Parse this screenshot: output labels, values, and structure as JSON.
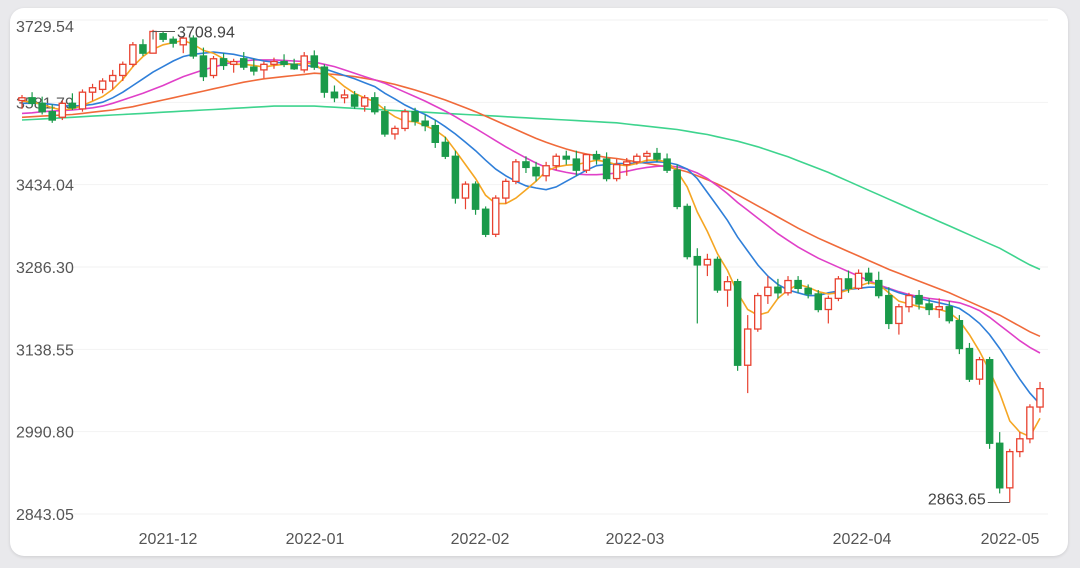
{
  "chart_data": {
    "type": "candlestick",
    "y_ticks": [
      "3729.54",
      "3581.79",
      "3434.04",
      "3286.30",
      "3138.55",
      "2990.80",
      "2843.05"
    ],
    "x_ticks": [
      "2021-12",
      "2022-01",
      "2022-02",
      "2022-03",
      "2022-04",
      "2022-05"
    ],
    "ylim": [
      2843.05,
      3729.54
    ],
    "annotations": [
      {
        "label": "3708.94",
        "value": 3708.94
      },
      {
        "label": "2863.65",
        "value": 2863.65
      }
    ],
    "colors": {
      "up": "#e8412f",
      "down": "#1a9a4a",
      "ma5": "#f5a623",
      "ma10": "#2f7fd9",
      "ma20": "#e040c8",
      "ma30": "#f06a3a",
      "ma60": "#3ed48e"
    },
    "ohlc": [
      [
        3585,
        3595,
        3570,
        3590
      ],
      [
        3590,
        3600,
        3575,
        3580
      ],
      [
        3580,
        3592,
        3560,
        3565
      ],
      [
        3565,
        3578,
        3545,
        3550
      ],
      [
        3555,
        3585,
        3550,
        3580
      ],
      [
        3580,
        3598,
        3568,
        3572
      ],
      [
        3570,
        3605,
        3565,
        3600
      ],
      [
        3600,
        3615,
        3585,
        3608
      ],
      [
        3605,
        3625,
        3598,
        3620
      ],
      [
        3620,
        3640,
        3605,
        3630
      ],
      [
        3630,
        3655,
        3620,
        3650
      ],
      [
        3650,
        3690,
        3645,
        3685
      ],
      [
        3685,
        3695,
        3665,
        3670
      ],
      [
        3670,
        3712,
        3670,
        3709
      ],
      [
        3705,
        3708,
        3690,
        3695
      ],
      [
        3695,
        3700,
        3680,
        3688
      ],
      [
        3685,
        3700,
        3670,
        3697
      ],
      [
        3697,
        3702,
        3660,
        3665
      ],
      [
        3665,
        3680,
        3620,
        3628
      ],
      [
        3630,
        3665,
        3625,
        3660
      ],
      [
        3660,
        3670,
        3640,
        3648
      ],
      [
        3650,
        3660,
        3635,
        3655
      ],
      [
        3660,
        3672,
        3640,
        3645
      ],
      [
        3645,
        3660,
        3630,
        3638
      ],
      [
        3640,
        3655,
        3625,
        3650
      ],
      [
        3650,
        3662,
        3642,
        3655
      ],
      [
        3655,
        3668,
        3645,
        3650
      ],
      [
        3650,
        3660,
        3640,
        3642
      ],
      [
        3640,
        3672,
        3635,
        3665
      ],
      [
        3665,
        3675,
        3640,
        3645
      ],
      [
        3645,
        3650,
        3590,
        3600
      ],
      [
        3600,
        3612,
        3582,
        3590
      ],
      [
        3590,
        3605,
        3580,
        3595
      ],
      [
        3595,
        3602,
        3570,
        3575
      ],
      [
        3575,
        3595,
        3565,
        3590
      ],
      [
        3590,
        3600,
        3560,
        3565
      ],
      [
        3565,
        3575,
        3520,
        3525
      ],
      [
        3525,
        3540,
        3515,
        3535
      ],
      [
        3535,
        3570,
        3530,
        3565
      ],
      [
        3565,
        3572,
        3540,
        3548
      ],
      [
        3548,
        3560,
        3530,
        3540
      ],
      [
        3540,
        3550,
        3500,
        3510
      ],
      [
        3510,
        3520,
        3480,
        3485
      ],
      [
        3485,
        3495,
        3400,
        3410
      ],
      [
        3410,
        3440,
        3390,
        3435
      ],
      [
        3435,
        3440,
        3380,
        3390
      ],
      [
        3390,
        3395,
        3340,
        3345
      ],
      [
        3345,
        3415,
        3340,
        3410
      ],
      [
        3410,
        3445,
        3400,
        3440
      ],
      [
        3440,
        3480,
        3435,
        3475
      ],
      [
        3475,
        3485,
        3455,
        3465
      ],
      [
        3465,
        3475,
        3440,
        3450
      ],
      [
        3450,
        3475,
        3440,
        3468
      ],
      [
        3468,
        3490,
        3460,
        3485
      ],
      [
        3485,
        3495,
        3470,
        3480
      ],
      [
        3480,
        3495,
        3450,
        3460
      ],
      [
        3460,
        3490,
        3455,
        3488
      ],
      [
        3488,
        3495,
        3470,
        3480
      ],
      [
        3480,
        3492,
        3440,
        3445
      ],
      [
        3445,
        3480,
        3440,
        3470
      ],
      [
        3470,
        3482,
        3450,
        3475
      ],
      [
        3475,
        3490,
        3470,
        3485
      ],
      [
        3485,
        3495,
        3475,
        3490
      ],
      [
        3490,
        3500,
        3475,
        3480
      ],
      [
        3480,
        3490,
        3455,
        3460
      ],
      [
        3460,
        3470,
        3390,
        3395
      ],
      [
        3395,
        3400,
        3300,
        3305
      ],
      [
        3305,
        3320,
        3185,
        3290
      ],
      [
        3290,
        3310,
        3270,
        3300
      ],
      [
        3300,
        3305,
        3240,
        3245
      ],
      [
        3245,
        3270,
        3215,
        3260
      ],
      [
        3260,
        3265,
        3100,
        3110
      ],
      [
        3110,
        3200,
        3060,
        3175
      ],
      [
        3175,
        3240,
        3170,
        3235
      ],
      [
        3235,
        3270,
        3220,
        3250
      ],
      [
        3250,
        3265,
        3230,
        3240
      ],
      [
        3240,
        3270,
        3235,
        3262
      ],
      [
        3262,
        3270,
        3240,
        3248
      ],
      [
        3248,
        3255,
        3230,
        3238
      ],
      [
        3238,
        3245,
        3205,
        3210
      ],
      [
        3210,
        3235,
        3185,
        3230
      ],
      [
        3230,
        3270,
        3225,
        3265
      ],
      [
        3265,
        3280,
        3240,
        3248
      ],
      [
        3248,
        3282,
        3245,
        3275
      ],
      [
        3275,
        3285,
        3255,
        3262
      ],
      [
        3262,
        3278,
        3230,
        3235
      ],
      [
        3235,
        3250,
        3175,
        3185
      ],
      [
        3185,
        3220,
        3165,
        3215
      ],
      [
        3215,
        3240,
        3205,
        3235
      ],
      [
        3235,
        3245,
        3210,
        3220
      ],
      [
        3220,
        3230,
        3200,
        3210
      ],
      [
        3210,
        3230,
        3195,
        3215
      ],
      [
        3215,
        3225,
        3185,
        3190
      ],
      [
        3190,
        3200,
        3130,
        3140
      ],
      [
        3140,
        3150,
        3080,
        3085
      ],
      [
        3085,
        3125,
        3075,
        3120
      ],
      [
        3120,
        3125,
        2960,
        2970
      ],
      [
        2970,
        2990,
        2880,
        2890
      ],
      [
        2890,
        2960,
        2864,
        2955
      ],
      [
        2955,
        2990,
        2945,
        2978
      ],
      [
        2978,
        3040,
        2970,
        3035
      ],
      [
        3035,
        3080,
        3025,
        3068
      ]
    ],
    "ma5": [
      3584,
      3582,
      3578,
      3572,
      3568,
      3570,
      3576,
      3584,
      3592,
      3605,
      3623,
      3646,
      3664,
      3677,
      3685,
      3689,
      3693,
      3686,
      3675,
      3670,
      3660,
      3650,
      3650,
      3648,
      3645,
      3648,
      3650,
      3650,
      3652,
      3651,
      3637,
      3625,
      3610,
      3598,
      3590,
      3583,
      3568,
      3556,
      3548,
      3547,
      3540,
      3532,
      3519,
      3495,
      3470,
      3445,
      3415,
      3400,
      3400,
      3410,
      3425,
      3440,
      3458,
      3466,
      3469,
      3470,
      3474,
      3478,
      3475,
      3470,
      3468,
      3472,
      3478,
      3478,
      3475,
      3458,
      3430,
      3385,
      3350,
      3310,
      3280,
      3240,
      3210,
      3200,
      3205,
      3230,
      3245,
      3255,
      3250,
      3242,
      3238,
      3240,
      3245,
      3252,
      3258,
      3255,
      3240,
      3225,
      3220,
      3215,
      3212,
      3210,
      3205,
      3190,
      3165,
      3135,
      3100,
      3060,
      3010,
      2990,
      2982,
      3015
    ],
    "ma10": [
      3580,
      3580,
      3580,
      3578,
      3576,
      3575,
      3576,
      3578,
      3582,
      3590,
      3600,
      3612,
      3624,
      3636,
      3646,
      3656,
      3664,
      3668,
      3670,
      3672,
      3670,
      3668,
      3664,
      3660,
      3656,
      3654,
      3652,
      3650,
      3648,
      3646,
      3642,
      3636,
      3630,
      3624,
      3617,
      3610,
      3598,
      3588,
      3577,
      3568,
      3560,
      3550,
      3538,
      3525,
      3510,
      3495,
      3478,
      3462,
      3450,
      3440,
      3432,
      3428,
      3425,
      3430,
      3440,
      3450,
      3460,
      3468,
      3470,
      3472,
      3472,
      3473,
      3474,
      3475,
      3474,
      3470,
      3462,
      3445,
      3420,
      3395,
      3370,
      3340,
      3315,
      3290,
      3270,
      3255,
      3245,
      3240,
      3235,
      3235,
      3240,
      3243,
      3246,
      3248,
      3250,
      3250,
      3247,
      3240,
      3235,
      3230,
      3226,
      3222,
      3218,
      3212,
      3200,
      3185,
      3165,
      3140,
      3112,
      3085,
      3060,
      3040
    ],
    "ma20": [
      3562,
      3563,
      3565,
      3566,
      3567,
      3568,
      3570,
      3572,
      3575,
      3580,
      3586,
      3592,
      3598,
      3605,
      3612,
      3620,
      3628,
      3634,
      3640,
      3645,
      3650,
      3654,
      3656,
      3658,
      3658,
      3658,
      3657,
      3656,
      3655,
      3654,
      3650,
      3646,
      3640,
      3634,
      3628,
      3622,
      3616,
      3608,
      3600,
      3592,
      3584,
      3575,
      3566,
      3556,
      3545,
      3535,
      3524,
      3513,
      3502,
      3492,
      3482,
      3473,
      3465,
      3460,
      3456,
      3453,
      3452,
      3452,
      3453,
      3455,
      3458,
      3462,
      3465,
      3467,
      3468,
      3466,
      3462,
      3455,
      3445,
      3432,
      3418,
      3402,
      3388,
      3374,
      3360,
      3346,
      3334,
      3322,
      3312,
      3302,
      3294,
      3286,
      3278,
      3270,
      3262,
      3254,
      3248,
      3242,
      3237,
      3233,
      3230,
      3228,
      3225,
      3222,
      3216,
      3208,
      3196,
      3182,
      3168,
      3154,
      3142,
      3132
    ],
    "ma30": [
      3555,
      3556,
      3557,
      3558,
      3559,
      3560,
      3562,
      3564,
      3566,
      3568,
      3571,
      3574,
      3578,
      3582,
      3586,
      3590,
      3594,
      3598,
      3602,
      3606,
      3610,
      3614,
      3618,
      3621,
      3624,
      3626,
      3628,
      3630,
      3632,
      3634,
      3633,
      3632,
      3630,
      3628,
      3625,
      3622,
      3618,
      3614,
      3609,
      3604,
      3598,
      3592,
      3586,
      3579,
      3572,
      3565,
      3557,
      3549,
      3541,
      3533,
      3525,
      3517,
      3510,
      3504,
      3498,
      3493,
      3489,
      3486,
      3483,
      3481,
      3478,
      3475,
      3472,
      3469,
      3466,
      3462,
      3457,
      3450,
      3443,
      3435,
      3426,
      3416,
      3406,
      3396,
      3386,
      3376,
      3366,
      3356,
      3347,
      3338,
      3330,
      3322,
      3314,
      3306,
      3298,
      3290,
      3282,
      3275,
      3268,
      3261,
      3254,
      3247,
      3240,
      3232,
      3224,
      3216,
      3208,
      3200,
      3190,
      3180,
      3170,
      3162
    ],
    "ma60": [
      3550,
      3551,
      3552,
      3553,
      3554,
      3555,
      3556,
      3557,
      3558,
      3559,
      3560,
      3561,
      3562,
      3563,
      3564,
      3565,
      3566,
      3567,
      3568,
      3569,
      3570,
      3571,
      3572,
      3573,
      3574,
      3575,
      3575,
      3575,
      3575,
      3575,
      3574,
      3573,
      3572,
      3571,
      3570,
      3569,
      3568,
      3567,
      3566,
      3565,
      3564,
      3563,
      3562,
      3561,
      3560,
      3559,
      3558,
      3557,
      3556,
      3555,
      3554,
      3553,
      3552,
      3551,
      3550,
      3549,
      3548,
      3547,
      3546,
      3545,
      3543,
      3541,
      3539,
      3537,
      3535,
      3533,
      3530,
      3527,
      3524,
      3520,
      3516,
      3512,
      3507,
      3502,
      3496,
      3490,
      3484,
      3477,
      3470,
      3463,
      3456,
      3448,
      3440,
      3432,
      3424,
      3416,
      3408,
      3400,
      3392,
      3384,
      3376,
      3368,
      3360,
      3352,
      3344,
      3336,
      3328,
      3320,
      3310,
      3300,
      3290,
      3282
    ]
  }
}
